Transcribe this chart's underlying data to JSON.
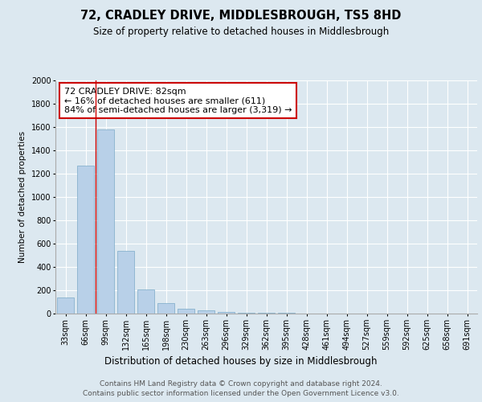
{
  "title": "72, CRADLEY DRIVE, MIDDLESBROUGH, TS5 8HD",
  "subtitle": "Size of property relative to detached houses in Middlesbrough",
  "xlabel": "Distribution of detached houses by size in Middlesbrough",
  "ylabel": "Number of detached properties",
  "categories": [
    "33sqm",
    "66sqm",
    "99sqm",
    "132sqm",
    "165sqm",
    "198sqm",
    "230sqm",
    "263sqm",
    "296sqm",
    "329sqm",
    "362sqm",
    "395sqm",
    "428sqm",
    "461sqm",
    "494sqm",
    "527sqm",
    "559sqm",
    "592sqm",
    "625sqm",
    "658sqm",
    "691sqm"
  ],
  "values": [
    140,
    1270,
    1580,
    540,
    210,
    90,
    40,
    25,
    15,
    8,
    5,
    5,
    0,
    0,
    0,
    0,
    0,
    0,
    0,
    0,
    0
  ],
  "bar_color": "#b8d0e8",
  "bar_edge_color": "#7aaac8",
  "annotation_text": "72 CRADLEY DRIVE: 82sqm\n← 16% of detached houses are smaller (611)\n84% of semi-detached houses are larger (3,319) →",
  "annotation_box_color": "#ffffff",
  "annotation_box_edge": "#cc0000",
  "vline_color": "#cc0000",
  "ylim": [
    0,
    2000
  ],
  "yticks": [
    0,
    200,
    400,
    600,
    800,
    1000,
    1200,
    1400,
    1600,
    1800,
    2000
  ],
  "background_color": "#dce8f0",
  "plot_bg_color": "#dce8f0",
  "footer_line1": "Contains HM Land Registry data © Crown copyright and database right 2024.",
  "footer_line2": "Contains public sector information licensed under the Open Government Licence v3.0.",
  "title_fontsize": 10.5,
  "subtitle_fontsize": 8.5,
  "xlabel_fontsize": 8.5,
  "ylabel_fontsize": 7.5,
  "tick_fontsize": 7,
  "annotation_fontsize": 8,
  "footer_fontsize": 6.5
}
